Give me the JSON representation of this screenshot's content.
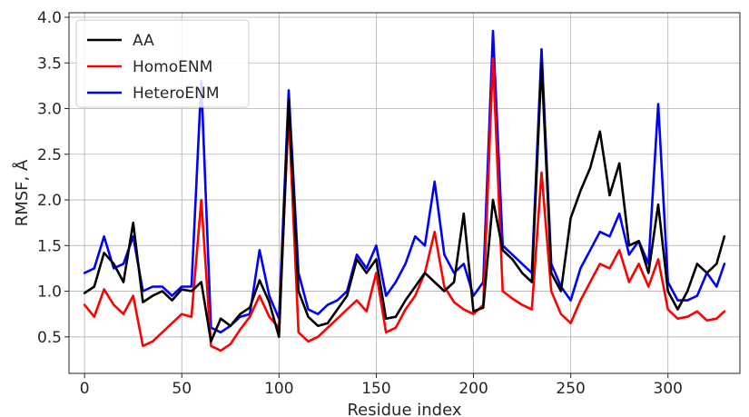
{
  "chart_data": {
    "type": "line",
    "xlabel": "Residue index",
    "ylabel": "RMSF, Å",
    "xlim": [
      -8,
      337
    ],
    "ylim": [
      0.1,
      4.05
    ],
    "xticks": [
      "0",
      "50",
      "100",
      "150",
      "200",
      "250",
      "300"
    ],
    "yticks": [
      "0.5",
      "1.0",
      "1.5",
      "2.0",
      "2.5",
      "3.0",
      "3.5",
      "4.0"
    ],
    "grid": true,
    "legend_position": "top-left",
    "x": [
      0,
      5,
      10,
      15,
      20,
      25,
      30,
      35,
      40,
      45,
      50,
      55,
      60,
      65,
      70,
      75,
      80,
      85,
      90,
      95,
      100,
      105,
      110,
      115,
      120,
      125,
      130,
      135,
      140,
      145,
      150,
      155,
      160,
      165,
      170,
      175,
      180,
      185,
      190,
      195,
      200,
      205,
      210,
      215,
      220,
      225,
      230,
      235,
      240,
      245,
      250,
      255,
      260,
      265,
      270,
      275,
      280,
      285,
      290,
      295,
      300,
      305,
      310,
      315,
      320,
      325,
      329
    ],
    "series": [
      {
        "name": "AA",
        "color": "#000000",
        "values": [
          0.98,
          1.05,
          1.42,
          1.3,
          1.1,
          1.75,
          0.88,
          0.95,
          1.0,
          0.9,
          1.02,
          1.0,
          1.1,
          0.45,
          0.7,
          0.62,
          0.75,
          0.82,
          1.12,
          0.88,
          0.5,
          3.1,
          1.0,
          0.72,
          0.62,
          0.65,
          0.8,
          0.95,
          1.35,
          1.2,
          1.35,
          0.7,
          0.72,
          0.9,
          1.05,
          1.2,
          1.1,
          1.0,
          1.1,
          1.85,
          0.78,
          0.82,
          2.0,
          1.45,
          1.35,
          1.2,
          1.1,
          3.5,
          1.2,
          1.0,
          1.8,
          2.1,
          2.35,
          2.75,
          2.05,
          2.4,
          1.5,
          1.55,
          1.2,
          1.95,
          1.0,
          0.8,
          1.0,
          1.3,
          1.2,
          1.3,
          1.6
        ]
      },
      {
        "name": "HomoENM",
        "color": "#ff0000",
        "values": [
          0.85,
          0.72,
          1.02,
          0.85,
          0.75,
          0.95,
          0.4,
          0.45,
          0.55,
          0.65,
          0.75,
          0.72,
          2.0,
          0.4,
          0.35,
          0.42,
          0.58,
          0.72,
          0.95,
          0.72,
          0.6,
          2.95,
          0.55,
          0.45,
          0.5,
          0.6,
          0.7,
          0.8,
          0.9,
          0.78,
          1.2,
          0.55,
          0.6,
          0.8,
          0.95,
          1.2,
          1.65,
          1.05,
          0.88,
          0.8,
          0.75,
          0.85,
          3.55,
          1.0,
          0.92,
          0.85,
          0.8,
          2.3,
          1.0,
          0.75,
          0.65,
          0.9,
          1.1,
          1.3,
          1.25,
          1.45,
          1.1,
          1.3,
          1.05,
          1.35,
          0.8,
          0.7,
          0.72,
          0.78,
          0.68,
          0.7,
          0.78
        ]
      },
      {
        "name": "HeteroENM",
        "color": "#0000ff",
        "values": [
          1.2,
          1.25,
          1.6,
          1.25,
          1.3,
          1.6,
          1.0,
          1.05,
          1.05,
          0.95,
          1.05,
          1.05,
          3.3,
          0.6,
          0.55,
          0.62,
          0.72,
          0.75,
          1.45,
          0.95,
          0.7,
          3.2,
          1.2,
          0.8,
          0.75,
          0.85,
          0.9,
          1.0,
          1.4,
          1.25,
          1.5,
          0.95,
          1.1,
          1.3,
          1.6,
          1.5,
          2.2,
          1.4,
          1.2,
          1.3,
          0.95,
          1.1,
          3.85,
          1.5,
          1.4,
          1.3,
          1.2,
          3.65,
          1.3,
          1.05,
          0.9,
          1.25,
          1.45,
          1.65,
          1.6,
          1.85,
          1.4,
          1.55,
          1.3,
          3.05,
          1.1,
          0.9,
          0.9,
          0.95,
          1.2,
          1.05,
          1.3
        ]
      }
    ]
  }
}
